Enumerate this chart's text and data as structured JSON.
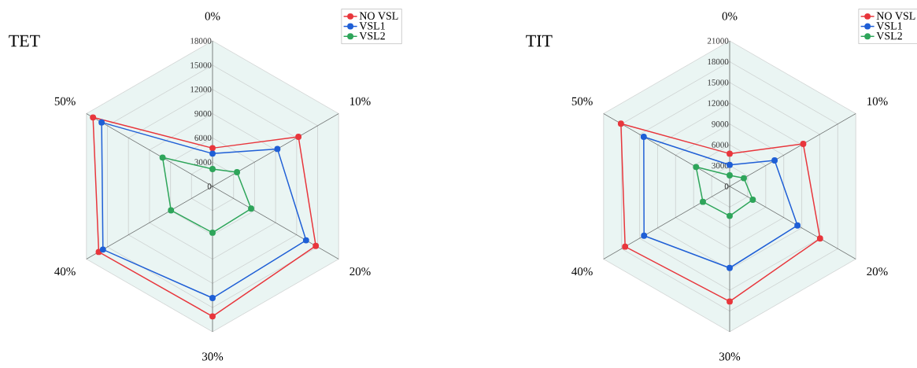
{
  "chart_data": [
    {
      "type": "radar",
      "title": "TET",
      "categories": [
        "0%",
        "10%",
        "20%",
        "30%",
        "40%",
        "50%"
      ],
      "ylim": [
        0,
        18000
      ],
      "yticks": [
        0,
        3000,
        6000,
        9000,
        12000,
        15000,
        18000
      ],
      "grid": true,
      "legend": "top right",
      "marker": "circle",
      "line_style": "solid",
      "series": [
        {
          "name": "NO VSL",
          "color": "#e8363c",
          "values": [
            4730,
            12260,
            14740,
            16090,
            16240,
            17060
          ]
        },
        {
          "name": "VSL1",
          "color": "#1f5fd6",
          "values": [
            4050,
            9260,
            13350,
            13820,
            15640,
            15830
          ]
        },
        {
          "name": "VSL2",
          "color": "#2ea55a",
          "values": [
            2140,
            3490,
            5510,
            5730,
            5930,
            7130
          ]
        }
      ]
    },
    {
      "type": "radar",
      "title": "TIT",
      "categories": [
        "0%",
        "10%",
        "20%",
        "30%",
        "40%",
        "50%"
      ],
      "ylim": [
        0,
        21000
      ],
      "yticks": [
        0,
        3000,
        6000,
        9000,
        12000,
        15000,
        18000,
        21000
      ],
      "grid": true,
      "legend": "top right",
      "marker": "circle",
      "line_style": "solid",
      "series": [
        {
          "name": "NO VSL",
          "color": "#e8363c",
          "values": [
            4720,
            12250,
            15050,
            16620,
            17410,
            18110
          ]
        },
        {
          "name": "VSL1",
          "color": "#1f5fd6",
          "values": [
            3100,
            7480,
            11290,
            11780,
            14260,
            14310
          ]
        },
        {
          "name": "VSL2",
          "color": "#2ea55a",
          "values": [
            1590,
            2360,
            3850,
            4270,
            4460,
            5600
          ]
        }
      ]
    }
  ]
}
